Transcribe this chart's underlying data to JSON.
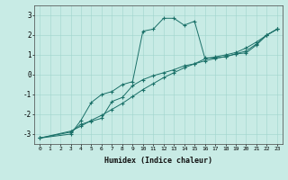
{
  "title": "",
  "xlabel": "Humidex (Indice chaleur)",
  "ylabel": "",
  "background_color": "#c8ebe5",
  "line_color": "#1a7068",
  "grid_color": "#a0d4cc",
  "xlim": [
    -0.5,
    23.5
  ],
  "ylim": [
    -3.5,
    3.5
  ],
  "xticks": [
    0,
    1,
    2,
    3,
    4,
    5,
    6,
    7,
    8,
    9,
    10,
    11,
    12,
    13,
    14,
    15,
    16,
    17,
    18,
    19,
    20,
    21,
    22,
    23
  ],
  "yticks": [
    -3,
    -2,
    -1,
    0,
    1,
    2,
    3
  ],
  "series": [
    {
      "x": [
        0,
        3,
        4,
        5,
        6,
        7,
        8,
        9,
        10,
        11,
        12,
        13,
        14,
        15,
        16,
        17,
        18,
        19,
        20,
        21,
        22,
        23
      ],
      "y": [
        -3.2,
        -3.0,
        -2.3,
        -1.4,
        -1.0,
        -0.85,
        -0.5,
        -0.35,
        2.2,
        2.3,
        2.85,
        2.85,
        2.5,
        2.7,
        0.85,
        0.85,
        0.9,
        1.05,
        1.1,
        1.5,
        2.0,
        2.3
      ],
      "linestyle": "-"
    },
    {
      "x": [
        0,
        3,
        4,
        5,
        6,
        7,
        8,
        9,
        10,
        11,
        12,
        13,
        14,
        15,
        16,
        17,
        18,
        19,
        20,
        21,
        22,
        23
      ],
      "y": [
        -3.2,
        -2.9,
        -2.5,
        -2.35,
        -2.2,
        -1.35,
        -1.15,
        -0.55,
        -0.25,
        -0.05,
        0.1,
        0.25,
        0.45,
        0.55,
        0.7,
        0.82,
        0.92,
        1.05,
        1.2,
        1.55,
        2.0,
        2.3
      ],
      "linestyle": "-"
    },
    {
      "x": [
        0,
        3,
        4,
        5,
        6,
        7,
        8,
        9,
        10,
        11,
        12,
        13,
        14,
        15,
        16,
        17,
        18,
        19,
        20,
        21,
        22,
        23
      ],
      "y": [
        -3.2,
        -2.85,
        -2.6,
        -2.3,
        -2.05,
        -1.75,
        -1.45,
        -1.1,
        -0.75,
        -0.45,
        -0.15,
        0.1,
        0.35,
        0.55,
        0.8,
        0.9,
        1.0,
        1.12,
        1.35,
        1.65,
        2.0,
        2.3
      ],
      "linestyle": "-"
    }
  ]
}
